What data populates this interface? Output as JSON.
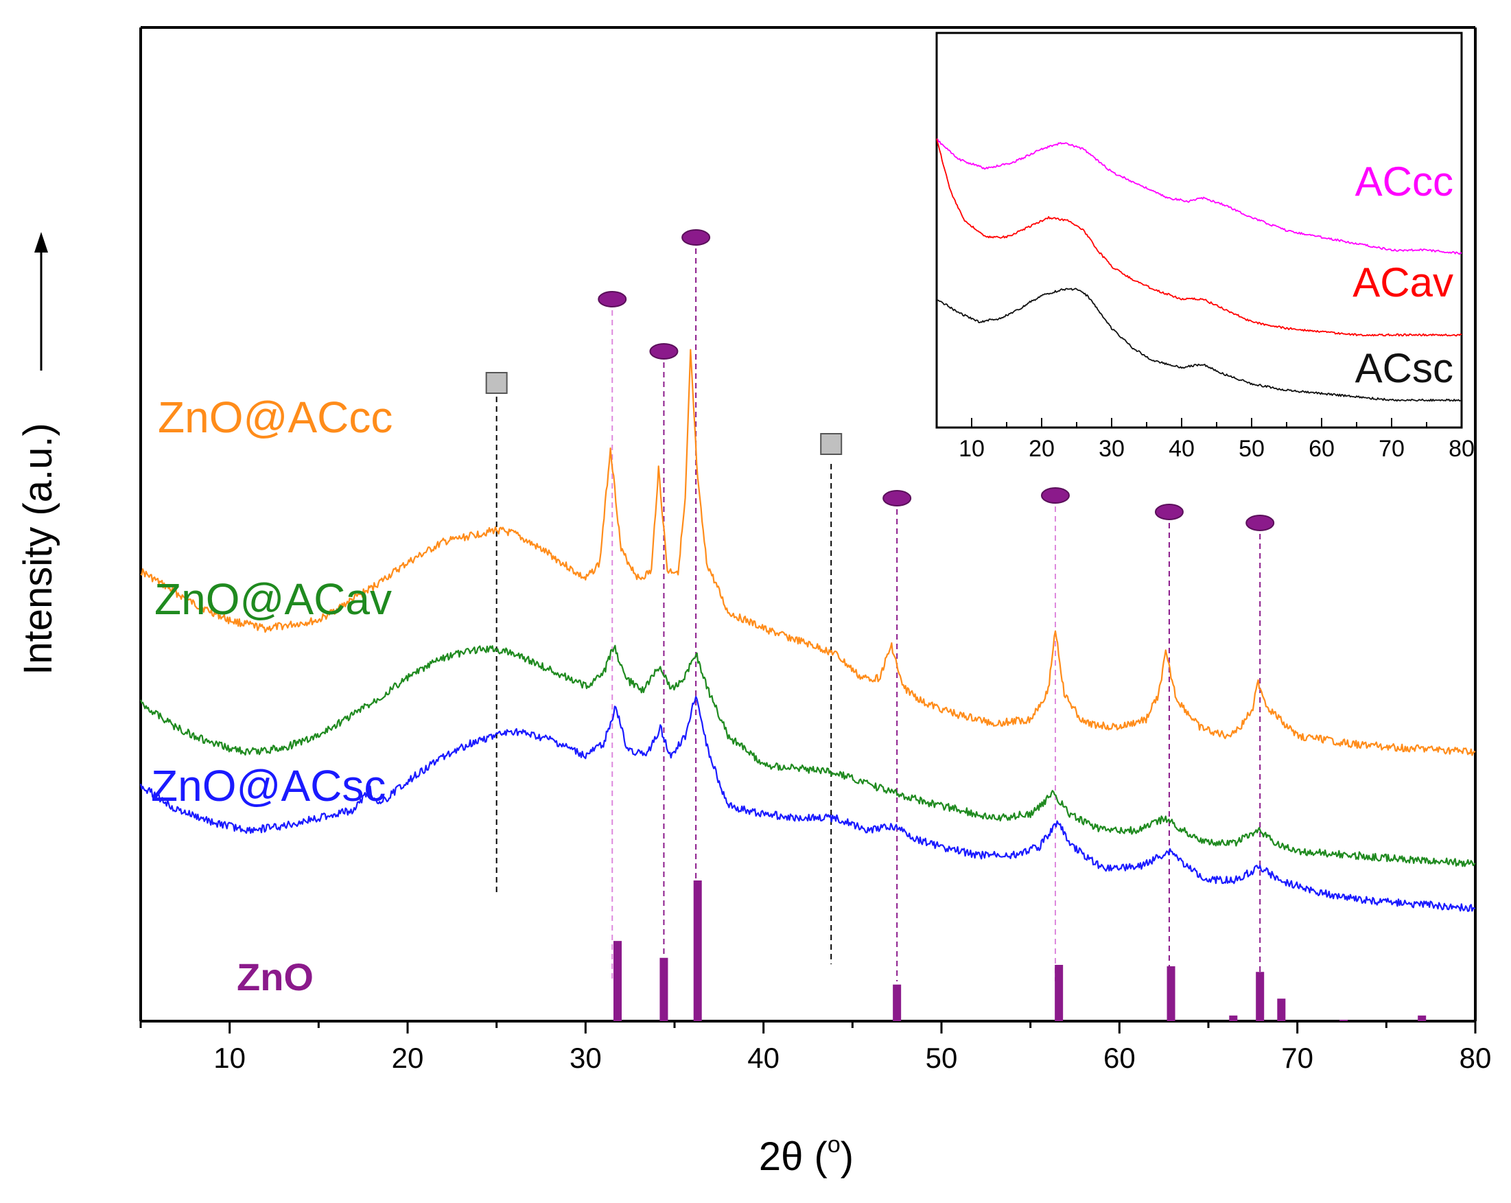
{
  "chart_data": {
    "type": "line",
    "xlabel": "2θ (",
    "xlabel_degree": "o",
    "xlabel_end": ")",
    "ylabel": "Intensity (a.u.)",
    "xlim": [
      5,
      80
    ],
    "x_ticks": [
      10,
      20,
      30,
      40,
      50,
      60,
      70,
      80
    ],
    "y_ticks_shown": false,
    "series": [
      {
        "name": "ZnO@ACcc",
        "color": "#ff8c1a",
        "points": [
          [
            5,
            0.78
          ],
          [
            8,
            0.7
          ],
          [
            10,
            0.66
          ],
          [
            12,
            0.64
          ],
          [
            15,
            0.66
          ],
          [
            18,
            0.74
          ],
          [
            20,
            0.8
          ],
          [
            22,
            0.85
          ],
          [
            24,
            0.87
          ],
          [
            25,
            0.88
          ],
          [
            26,
            0.87
          ],
          [
            28,
            0.82
          ],
          [
            30,
            0.76
          ],
          [
            30.8,
            0.8
          ],
          [
            31.4,
            1.08
          ],
          [
            32.0,
            0.83
          ],
          [
            33.0,
            0.76
          ],
          [
            33.7,
            0.78
          ],
          [
            34.1,
            1.03
          ],
          [
            34.6,
            0.78
          ],
          [
            35.2,
            0.78
          ],
          [
            35.6,
            0.95
          ],
          [
            35.9,
            1.31
          ],
          [
            36.3,
            1.0
          ],
          [
            36.8,
            0.8
          ],
          [
            38,
            0.68
          ],
          [
            40,
            0.64
          ],
          [
            42,
            0.61
          ],
          [
            44,
            0.58
          ],
          [
            45.5,
            0.52
          ],
          [
            46.5,
            0.52
          ],
          [
            47.2,
            0.6
          ],
          [
            47.8,
            0.5
          ],
          [
            49,
            0.46
          ],
          [
            51,
            0.43
          ],
          [
            53,
            0.41
          ],
          [
            55,
            0.42
          ],
          [
            56.0,
            0.49
          ],
          [
            56.4,
            0.64
          ],
          [
            56.9,
            0.48
          ],
          [
            58,
            0.41
          ],
          [
            60,
            0.4
          ],
          [
            61.5,
            0.42
          ],
          [
            62.2,
            0.48
          ],
          [
            62.6,
            0.58
          ],
          [
            63.2,
            0.47
          ],
          [
            64.5,
            0.4
          ],
          [
            66,
            0.38
          ],
          [
            66.8,
            0.4
          ],
          [
            67.5,
            0.45
          ],
          [
            67.8,
            0.51
          ],
          [
            68.3,
            0.45
          ],
          [
            69,
            0.42
          ],
          [
            70,
            0.38
          ],
          [
            73,
            0.36
          ],
          [
            76,
            0.35
          ],
          [
            80,
            0.34
          ]
        ]
      },
      {
        "name": "ZnO@ACav",
        "color": "#1f8a1f",
        "points": [
          [
            5,
            0.46
          ],
          [
            7,
            0.4
          ],
          [
            9,
            0.36
          ],
          [
            11,
            0.34
          ],
          [
            13,
            0.35
          ],
          [
            15,
            0.38
          ],
          [
            18,
            0.46
          ],
          [
            20,
            0.52
          ],
          [
            22,
            0.57
          ],
          [
            24,
            0.59
          ],
          [
            25,
            0.59
          ],
          [
            26,
            0.58
          ],
          [
            28,
            0.54
          ],
          [
            30,
            0.5
          ],
          [
            31,
            0.53
          ],
          [
            31.6,
            0.6
          ],
          [
            32.2,
            0.52
          ],
          [
            33.2,
            0.49
          ],
          [
            34.2,
            0.55
          ],
          [
            34.8,
            0.49
          ],
          [
            35.5,
            0.52
          ],
          [
            36.2,
            0.58
          ],
          [
            36.8,
            0.5
          ],
          [
            38,
            0.38
          ],
          [
            40,
            0.31
          ],
          [
            42,
            0.3
          ],
          [
            44,
            0.29
          ],
          [
            46,
            0.26
          ],
          [
            47.5,
            0.24
          ],
          [
            49,
            0.22
          ],
          [
            51,
            0.2
          ],
          [
            53,
            0.18
          ],
          [
            55,
            0.19
          ],
          [
            56.3,
            0.24
          ],
          [
            57.2,
            0.19
          ],
          [
            59,
            0.15
          ],
          [
            61,
            0.15
          ],
          [
            62.6,
            0.18
          ],
          [
            63.6,
            0.15
          ],
          [
            65,
            0.12
          ],
          [
            66.5,
            0.12
          ],
          [
            67.8,
            0.15
          ],
          [
            68.8,
            0.12
          ],
          [
            70,
            0.1
          ],
          [
            73,
            0.09
          ],
          [
            76,
            0.08
          ],
          [
            80,
            0.07
          ]
        ]
      },
      {
        "name": "ZnO@ACsc",
        "color": "#1a1aff",
        "points": [
          [
            5,
            0.26
          ],
          [
            7,
            0.2
          ],
          [
            9,
            0.17
          ],
          [
            11,
            0.15
          ],
          [
            13,
            0.16
          ],
          [
            15,
            0.18
          ],
          [
            17,
            0.2
          ],
          [
            17.9,
            0.25
          ],
          [
            18.3,
            0.21
          ],
          [
            20,
            0.27
          ],
          [
            22,
            0.33
          ],
          [
            24,
            0.37
          ],
          [
            25,
            0.38
          ],
          [
            26,
            0.39
          ],
          [
            28,
            0.37
          ],
          [
            30,
            0.33
          ],
          [
            31,
            0.36
          ],
          [
            31.7,
            0.45
          ],
          [
            32.3,
            0.35
          ],
          [
            33.4,
            0.33
          ],
          [
            34.2,
            0.4
          ],
          [
            34.8,
            0.33
          ],
          [
            35.6,
            0.38
          ],
          [
            36.2,
            0.48
          ],
          [
            36.9,
            0.34
          ],
          [
            38,
            0.21
          ],
          [
            40,
            0.19
          ],
          [
            42,
            0.18
          ],
          [
            44,
            0.18
          ],
          [
            46,
            0.15
          ],
          [
            47.4,
            0.16
          ],
          [
            48.5,
            0.13
          ],
          [
            50,
            0.11
          ],
          [
            52,
            0.09
          ],
          [
            54,
            0.09
          ],
          [
            55.5,
            0.11
          ],
          [
            56.5,
            0.17
          ],
          [
            57.4,
            0.11
          ],
          [
            59,
            0.06
          ],
          [
            61,
            0.06
          ],
          [
            62.9,
            0.1
          ],
          [
            63.8,
            0.06
          ],
          [
            65,
            0.03
          ],
          [
            66.5,
            0.03
          ],
          [
            67.9,
            0.06
          ],
          [
            69,
            0.03
          ],
          [
            71,
            0.0
          ],
          [
            74,
            -0.02
          ],
          [
            77,
            -0.03
          ],
          [
            80,
            -0.04
          ]
        ]
      }
    ],
    "reference": {
      "name": "ZnO",
      "color": "#8b1a8b",
      "peaks": [
        [
          31.8,
          0.57
        ],
        [
          34.4,
          0.45
        ],
        [
          36.3,
          1.0
        ],
        [
          47.5,
          0.26
        ],
        [
          56.6,
          0.4
        ],
        [
          62.9,
          0.39
        ],
        [
          66.4,
          0.04
        ],
        [
          67.9,
          0.35
        ],
        [
          69.1,
          0.16
        ],
        [
          72.6,
          0.01
        ],
        [
          77.0,
          0.04
        ]
      ]
    },
    "markers": {
      "ellipse_color": "#8b1a8b",
      "square_color": "#c0c0c0",
      "ellipse_positions": [
        31.5,
        34.4,
        36.2,
        47.5,
        56.4,
        62.8,
        67.9
      ],
      "square_positions": [
        25.0,
        43.8
      ]
    },
    "inset": {
      "type": "line",
      "xlim": [
        5,
        80
      ],
      "x_ticks": [
        10,
        20,
        30,
        40,
        50,
        60,
        70,
        80
      ],
      "series": [
        {
          "name": "ACcc",
          "color": "#ff00ff",
          "points": [
            [
              5,
              0.8
            ],
            [
              8,
              0.74
            ],
            [
              12,
              0.71
            ],
            [
              16,
              0.73
            ],
            [
              20,
              0.77
            ],
            [
              23,
              0.79
            ],
            [
              26,
              0.77
            ],
            [
              30,
              0.7
            ],
            [
              34,
              0.66
            ],
            [
              38,
              0.62
            ],
            [
              41,
              0.61
            ],
            [
              43,
              0.62
            ],
            [
              46,
              0.6
            ],
            [
              50,
              0.56
            ],
            [
              55,
              0.52
            ],
            [
              60,
              0.5
            ],
            [
              65,
              0.48
            ],
            [
              70,
              0.46
            ],
            [
              75,
              0.46
            ],
            [
              80,
              0.45
            ]
          ]
        },
        {
          "name": "ACav",
          "color": "#ff0000",
          "points": [
            [
              5,
              0.8
            ],
            [
              7,
              0.64
            ],
            [
              9,
              0.55
            ],
            [
              12,
              0.5
            ],
            [
              15,
              0.5
            ],
            [
              18,
              0.53
            ],
            [
              21,
              0.56
            ],
            [
              24,
              0.55
            ],
            [
              26,
              0.52
            ],
            [
              28,
              0.46
            ],
            [
              30,
              0.41
            ],
            [
              33,
              0.37
            ],
            [
              36,
              0.34
            ],
            [
              40,
              0.31
            ],
            [
              43,
              0.31
            ],
            [
              46,
              0.28
            ],
            [
              50,
              0.24
            ],
            [
              55,
              0.22
            ],
            [
              60,
              0.21
            ],
            [
              65,
              0.2
            ],
            [
              70,
              0.2
            ],
            [
              75,
              0.2
            ],
            [
              80,
              0.2
            ]
          ]
        },
        {
          "name": "ACsc",
          "color": "#111111",
          "points": [
            [
              5,
              0.31
            ],
            [
              8,
              0.27
            ],
            [
              11,
              0.24
            ],
            [
              14,
              0.25
            ],
            [
              17,
              0.28
            ],
            [
              18.3,
              0.3
            ],
            [
              20,
              0.32
            ],
            [
              23,
              0.34
            ],
            [
              25,
              0.34
            ],
            [
              26.5,
              0.32
            ],
            [
              28,
              0.28
            ],
            [
              30,
              0.22
            ],
            [
              33,
              0.16
            ],
            [
              36,
              0.12
            ],
            [
              40,
              0.1
            ],
            [
              43,
              0.11
            ],
            [
              46,
              0.08
            ],
            [
              50,
              0.05
            ],
            [
              55,
              0.03
            ],
            [
              60,
              0.02
            ],
            [
              65,
              0.01
            ],
            [
              70,
              0.0
            ],
            [
              75,
              0.0
            ],
            [
              80,
              0.0
            ]
          ]
        }
      ]
    }
  }
}
